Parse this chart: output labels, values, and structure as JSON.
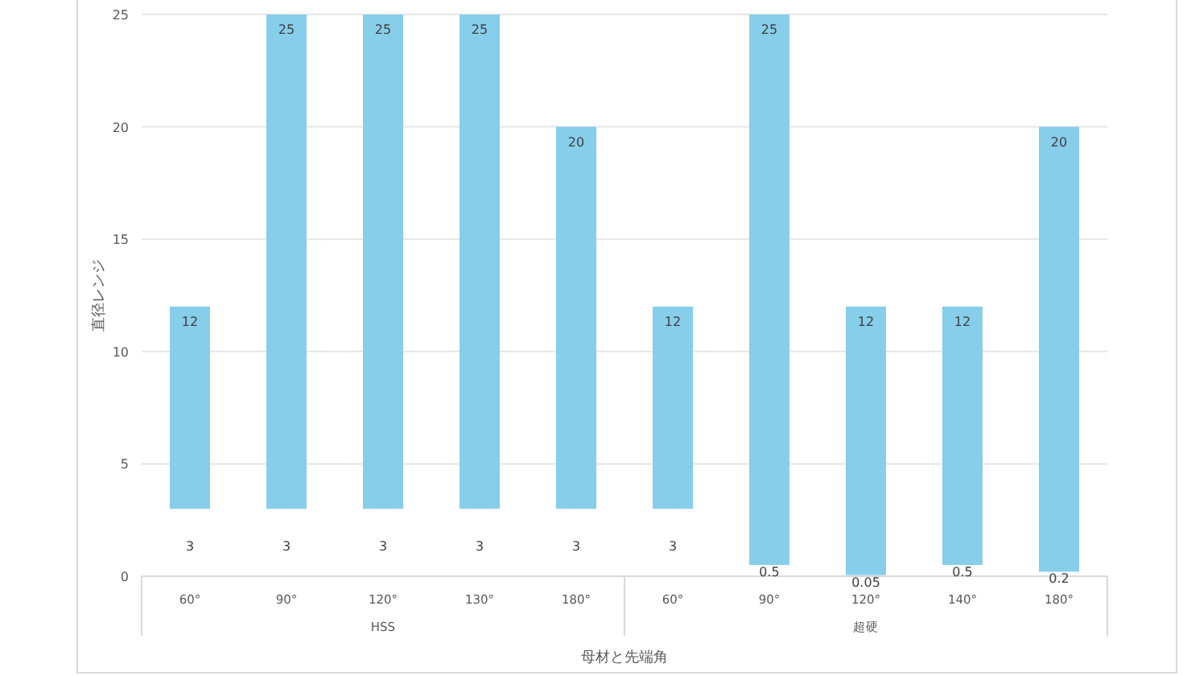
{
  "chart_data": {
    "type": "bar",
    "xlabel": "母材と先端角",
    "ylabel": "直径レンジ",
    "categories": [
      "60°",
      "90°",
      "120°",
      "130°",
      "180°",
      "60°",
      "90°",
      "120°",
      "140°",
      "180°"
    ],
    "base": [
      3,
      3,
      3,
      3,
      3,
      3,
      0.5,
      0.05,
      0.5,
      0.2
    ],
    "values": [
      9,
      22,
      22,
      22,
      17,
      9,
      24.5,
      11.95,
      11.5,
      19.8
    ],
    "value_labels": [
      "12",
      "25",
      "25",
      "25",
      "20",
      "12",
      "25",
      "12",
      "12",
      "20"
    ],
    "color": "#87ceeb",
    "ylim": [
      0,
      25
    ],
    "yticks": [
      0,
      5,
      10,
      15,
      20,
      25
    ],
    "grid": "y",
    "annotations": [
      "3",
      "3",
      "3",
      "3",
      "3",
      "3",
      "0.5",
      "0.05",
      "0.5",
      "0.2",
      "HSS",
      "超硬"
    ]
  }
}
